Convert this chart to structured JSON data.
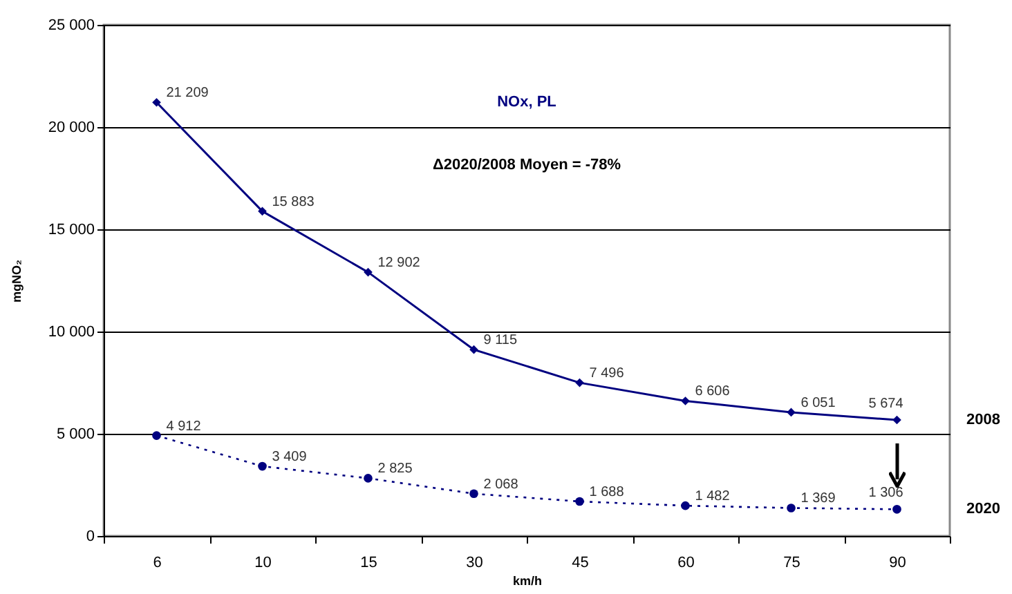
{
  "chart_data": {
    "type": "line",
    "title": "NOx, PL",
    "xlabel": "km/h",
    "ylabel": "mgNO₂",
    "annotations": [
      "Δ2020/2008 Moyen = -78%"
    ],
    "categories": [
      "6",
      "10",
      "15",
      "30",
      "45",
      "60",
      "75",
      "90"
    ],
    "ylim": [
      0,
      25000
    ],
    "yticks": [
      {
        "value": 0,
        "label": "0"
      },
      {
        "value": 5000,
        "label": "5 000"
      },
      {
        "value": 10000,
        "label": "10 000"
      },
      {
        "value": 15000,
        "label": "15 000"
      },
      {
        "value": 20000,
        "label": "20 000"
      },
      {
        "value": 25000,
        "label": "25 000"
      }
    ],
    "grid": "y",
    "legend": false,
    "data_labels": true,
    "series": [
      {
        "name": "2008",
        "color": "#000080",
        "marker": "diamond",
        "line_style": "solid",
        "values": [
          21209,
          15883,
          12902,
          9115,
          7496,
          6606,
          6051,
          5674
        ],
        "value_labels": [
          "21 209",
          "15 883",
          "12 902",
          "9 115",
          "7 496",
          "6 606",
          "6 051",
          "5 674"
        ]
      },
      {
        "name": "2020",
        "color": "#000080",
        "marker": "circle",
        "line_style": "dotted",
        "values": [
          4912,
          3409,
          2825,
          2068,
          1688,
          1482,
          1369,
          1306
        ],
        "value_labels": [
          "4 912",
          "3 409",
          "2 825",
          "2 068",
          "1 688",
          "1 482",
          "1 369",
          "1 306"
        ]
      }
    ]
  }
}
